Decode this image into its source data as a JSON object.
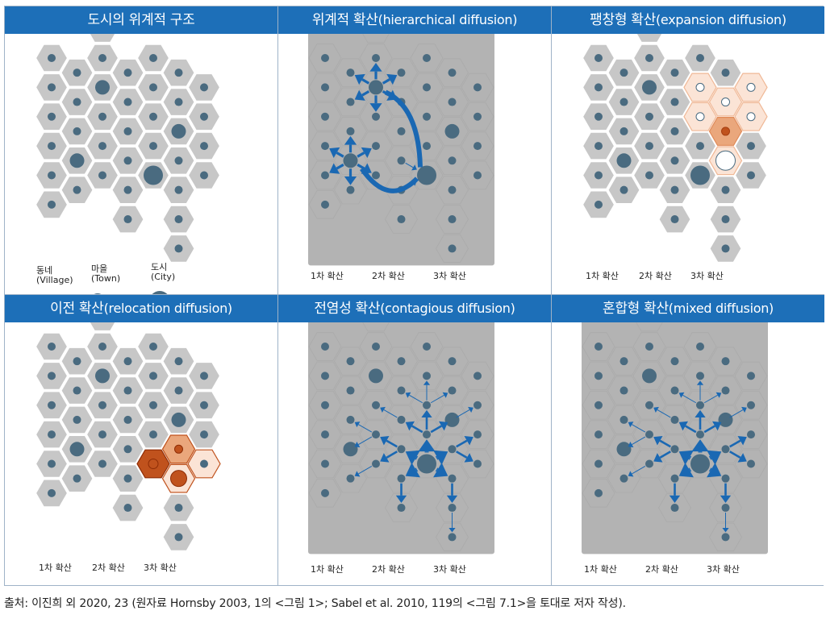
{
  "colors": {
    "header": "#1d6fb8",
    "hex_fill": "#c7c7c7",
    "hex_stroke": "#ffffff",
    "dot": "#4a6b80",
    "arrow": "#1a68b3",
    "first": "#c0521d",
    "second": "#eaa77c",
    "third": "#fbe4d6",
    "diamond": "#b3b3b3"
  },
  "panels": [
    {
      "id": "structure",
      "title": "도시의 위계적 구조",
      "title_en": "",
      "legend": [
        {
          "icon": "village-dot-icon",
          "label": "동네",
          "sub": "(Village)"
        },
        {
          "icon": "town-dot-icon",
          "label": "마을",
          "sub": "(Town)"
        },
        {
          "icon": "city-dot-icon",
          "label": "도시",
          "sub": "(City)"
        }
      ]
    },
    {
      "id": "hierarchical",
      "title": "위계적 확산",
      "title_en": "(hierarchical diffusion)",
      "legend": [
        {
          "icon": "thick-arrow-icon",
          "label": "1차 확산"
        },
        {
          "icon": "medium-arrow-icon",
          "label": "2차 확산"
        },
        {
          "icon": "thin-arrow-icon",
          "label": "3차 확산"
        }
      ]
    },
    {
      "id": "expansion",
      "title": "팽창형 확산",
      "title_en": "(expansion diffusion)",
      "legend": [
        {
          "icon": "first-dot-icon",
          "label": "1차 확산"
        },
        {
          "icon": "second-dot-icon",
          "label": "2차 확산"
        },
        {
          "icon": "third-dot-icon",
          "label": "3차 확산"
        }
      ]
    },
    {
      "id": "relocation",
      "title": "이전 확산",
      "title_en": "(relocation diffusion)",
      "legend": [
        {
          "icon": "first-dot-icon",
          "label": "1차 확산"
        },
        {
          "icon": "second-dot-icon",
          "label": "2차 확산"
        },
        {
          "icon": "third-dot-icon",
          "label": "3차 확산"
        }
      ]
    },
    {
      "id": "contagious",
      "title": "전염성 확산",
      "title_en": "(contagious diffusion)",
      "legend": [
        {
          "icon": "thick-arrow-icon",
          "label": "1차 확산"
        },
        {
          "icon": "medium-arrow-icon",
          "label": "2차 확산"
        },
        {
          "icon": "thin-arrow-icon",
          "label": "3차 확산"
        }
      ]
    },
    {
      "id": "mixed",
      "title": "혼합형 확산",
      "title_en": "(mixed diffusion)",
      "legend": [
        {
          "icon": "thick-arrow-icon",
          "label": "1차 확산"
        },
        {
          "icon": "medium-arrow-icon",
          "label": "2차 확산"
        },
        {
          "icon": "thin-arrow-icon",
          "label": "3차 확산"
        }
      ]
    }
  ],
  "caption": "출처: 이진희 외 2020, 23 (원자료 Hornsby 2003, 1의 <그림 1>; Sabel et al. 2010, 119의 <그림 7.1>을 토대로 저자 작성)."
}
